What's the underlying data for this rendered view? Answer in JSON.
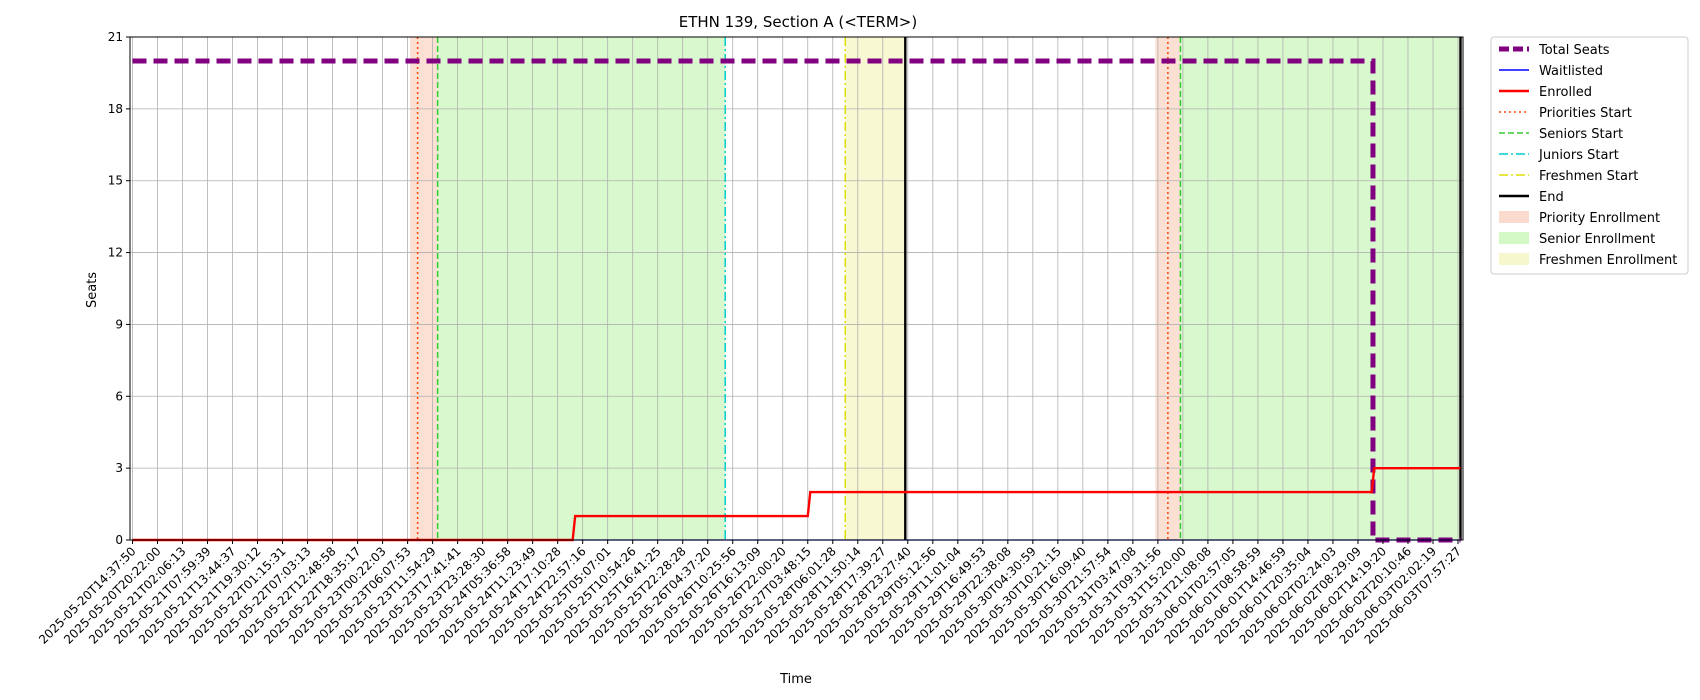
{
  "chart_data": {
    "type": "line",
    "title": "ETHN 139, Section A (<TERM>)",
    "xlabel": "Time",
    "ylabel": "Seats",
    "ylim": [
      0,
      21
    ],
    "yticks": [
      0,
      3,
      6,
      9,
      12,
      15,
      18,
      21
    ],
    "grid": true,
    "legend_placement": "outside-top-right",
    "x_tick_labels": [
      "2025-05-20T14:37:50",
      "2025-05-20T20:22:00",
      "2025-05-21T02:06:13",
      "2025-05-21T07:59:39",
      "2025-05-21T13:44:37",
      "2025-05-21T19:30:12",
      "2025-05-22T01:15:31",
      "2025-05-22T07:03:13",
      "2025-05-22T12:48:58",
      "2025-05-22T18:35:17",
      "2025-05-23T00:22:03",
      "2025-05-23T06:07:53",
      "2025-05-23T11:54:29",
      "2025-05-23T17:41:41",
      "2025-05-23T23:28:30",
      "2025-05-24T05:36:58",
      "2025-05-24T11:23:49",
      "2025-05-24T17:10:28",
      "2025-05-24T22:57:16",
      "2025-05-25T05:07:01",
      "2025-05-25T10:54:26",
      "2025-05-25T16:41:25",
      "2025-05-25T22:28:28",
      "2025-05-26T04:37:20",
      "2025-05-26T10:25:56",
      "2025-05-26T16:13:09",
      "2025-05-26T22:00:20",
      "2025-05-27T03:48:15",
      "2025-05-28T06:01:28",
      "2025-05-28T11:50:14",
      "2025-05-28T17:39:27",
      "2025-05-28T23:27:40",
      "2025-05-29T05:12:56",
      "2025-05-29T11:01:04",
      "2025-05-29T16:49:53",
      "2025-05-29T22:38:08",
      "2025-05-30T04:30:59",
      "2025-05-30T10:21:15",
      "2025-05-30T16:09:40",
      "2025-05-30T21:57:54",
      "2025-05-31T03:47:08",
      "2025-05-31T09:31:56",
      "2025-05-31T15:20:00",
      "2025-05-31T21:08:08",
      "2025-06-01T02:57:05",
      "2025-06-01T08:58:59",
      "2025-06-01T14:46:59",
      "2025-06-01T20:35:04",
      "2025-06-02T02:24:03",
      "2025-06-02T08:29:09",
      "2025-06-02T14:19:20",
      "2025-06-02T20:10:46",
      "2025-06-03T02:02:19",
      "2025-06-03T07:57:27"
    ],
    "series": [
      {
        "name": "Total Seats",
        "color": "#800080",
        "style": "dashed-thick",
        "points": [
          [
            0,
            20
          ],
          [
            49.6,
            20
          ],
          [
            49.6,
            0
          ],
          [
            53.1,
            0
          ]
        ]
      },
      {
        "name": "Waitlisted",
        "color": "#0000ff",
        "style": "solid-thin",
        "points": [
          [
            0,
            0
          ],
          [
            53.1,
            0
          ]
        ]
      },
      {
        "name": "Enrolled",
        "color": "#ff0000",
        "style": "solid",
        "points": [
          [
            0,
            0
          ],
          [
            17.6,
            0
          ],
          [
            17.7,
            1
          ],
          [
            27.0,
            1
          ],
          [
            27.1,
            2
          ],
          [
            49.55,
            2
          ],
          [
            49.65,
            3
          ],
          [
            53.1,
            3
          ]
        ]
      }
    ],
    "markers": [
      {
        "name": "Priorities Start",
        "color": "#ff4500",
        "style": "dotted",
        "x": [
          11.4,
          41.4
        ]
      },
      {
        "name": "Seniors Start",
        "color": "#32cd32",
        "style": "dashed",
        "x": [
          12.2,
          41.9
        ]
      },
      {
        "name": "Juniors Start",
        "color": "#00ced1",
        "style": "dashdot",
        "x": [
          23.7,
          53.1
        ]
      },
      {
        "name": "Freshmen Start",
        "color": "#dddd00",
        "style": "dashdot",
        "x": [
          28.5
        ]
      },
      {
        "name": "End",
        "color": "#000000",
        "style": "solid",
        "x": [
          30.9,
          53.1
        ]
      }
    ],
    "regions": [
      {
        "name": "Priority Enrollment",
        "color": "#f4a582",
        "opacity": 0.35,
        "spans": [
          [
            11.1,
            12.2
          ],
          [
            40.9,
            41.9
          ]
        ]
      },
      {
        "name": "Senior Enrollment",
        "color": "#90ee70",
        "opacity": 0.35,
        "spans": [
          [
            12.2,
            23.7
          ],
          [
            41.9,
            53.1
          ]
        ]
      },
      {
        "name": "Freshmen Enrollment",
        "color": "#eeee90",
        "opacity": 0.4,
        "spans": [
          [
            28.5,
            30.9
          ]
        ]
      }
    ]
  }
}
